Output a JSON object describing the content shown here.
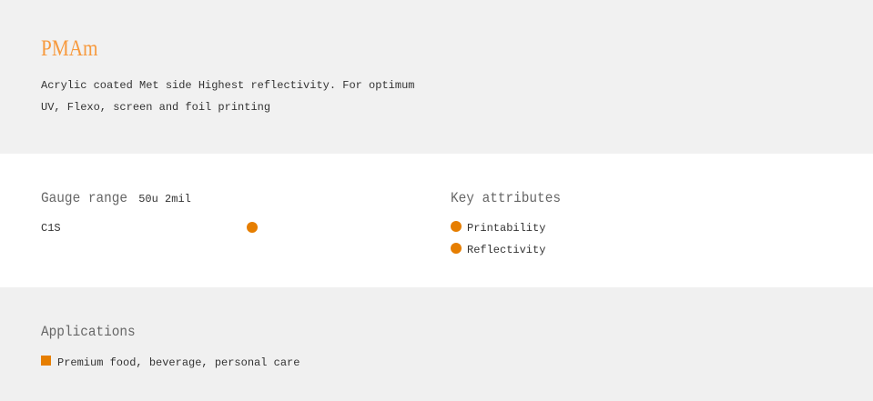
{
  "product": {
    "title": "PMAm",
    "description_line1": "Acrylic coated Met side Highest reflectivity. For optimum",
    "description_line2": "UV, Flexo, screen and foil printing"
  },
  "gauge": {
    "heading": "Gauge range",
    "value": "50u 2mil",
    "rows": [
      {
        "label": "C1S",
        "marked": true
      }
    ]
  },
  "key_attributes": {
    "heading": "Key attributes",
    "items": [
      "Printability",
      "Reflectivity"
    ]
  },
  "applications": {
    "heading": "Applications",
    "items": [
      "Premium food, beverage, personal care"
    ]
  },
  "colors": {
    "accent": "#e67e00",
    "title": "#f79a3e"
  }
}
